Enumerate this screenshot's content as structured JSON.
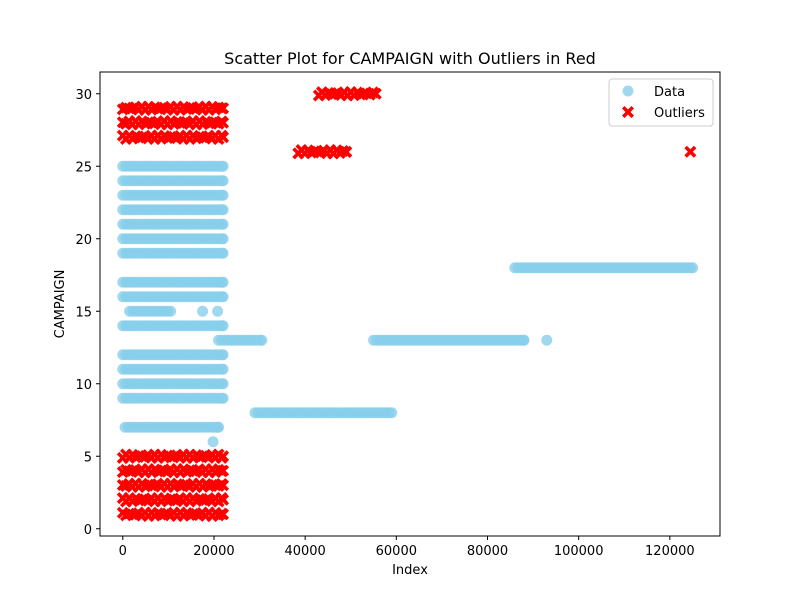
{
  "chart_data": {
    "type": "scatter",
    "title": "Scatter Plot for CAMPAIGN with Outliers in Red",
    "xlabel": "Index",
    "ylabel": "CAMPAIGN",
    "xlim": [
      -5000,
      131000
    ],
    "ylim": [
      -0.5,
      31.5
    ],
    "xticks": [
      0,
      20000,
      40000,
      60000,
      80000,
      100000,
      120000
    ],
    "yticks": [
      0,
      5,
      10,
      15,
      20,
      25,
      30
    ],
    "grid": false,
    "legend": {
      "placement": "top-right",
      "entries": [
        "Data",
        "Outliers"
      ]
    },
    "colors": {
      "data": "#87ceeb",
      "outliers": "#ff0000",
      "axes": "#000000"
    },
    "series": [
      {
        "name": "Data",
        "marker": "circle",
        "color": "#87ceeb",
        "segments": [
          {
            "y": 25,
            "x_from": 0,
            "x_to": 22000
          },
          {
            "y": 24,
            "x_from": 0,
            "x_to": 22000
          },
          {
            "y": 23,
            "x_from": 0,
            "x_to": 22000
          },
          {
            "y": 22,
            "x_from": 0,
            "x_to": 22000
          },
          {
            "y": 21,
            "x_from": 0,
            "x_to": 22000
          },
          {
            "y": 20,
            "x_from": 0,
            "x_to": 22000
          },
          {
            "y": 19,
            "x_from": 0,
            "x_to": 22000
          },
          {
            "y": 17,
            "x_from": 0,
            "x_to": 22000
          },
          {
            "y": 16,
            "x_from": 0,
            "x_to": 22000
          },
          {
            "y": 15,
            "x_from": 1500,
            "x_to": 10500
          },
          {
            "y": 14,
            "x_from": 0,
            "x_to": 22000
          },
          {
            "y": 13,
            "x_from": 21000,
            "x_to": 30500
          },
          {
            "y": 13,
            "x_from": 55000,
            "x_to": 88000
          },
          {
            "y": 12,
            "x_from": 0,
            "x_to": 22000
          },
          {
            "y": 11,
            "x_from": 0,
            "x_to": 22000
          },
          {
            "y": 10,
            "x_from": 0,
            "x_to": 22000
          },
          {
            "y": 9,
            "x_from": 0,
            "x_to": 22000
          },
          {
            "y": 8,
            "x_from": 29000,
            "x_to": 59000
          },
          {
            "y": 7,
            "x_from": 500,
            "x_to": 21000
          },
          {
            "y": 18,
            "x_from": 86000,
            "x_to": 125000
          }
        ],
        "points": [
          {
            "x": 17500,
            "y": 15
          },
          {
            "x": 20800,
            "y": 15
          },
          {
            "x": 19800,
            "y": 6
          },
          {
            "x": 93000,
            "y": 13
          }
        ]
      },
      {
        "name": "Outliers",
        "marker": "X",
        "color": "#ff0000",
        "segments": [
          {
            "y": 29,
            "x_from": 0,
            "x_to": 22000
          },
          {
            "y": 28,
            "x_from": 0,
            "x_to": 22000
          },
          {
            "y": 27,
            "x_from": 0,
            "x_to": 22000
          },
          {
            "y": 30,
            "x_from": 43000,
            "x_to": 55500
          },
          {
            "y": 26,
            "x_from": 38500,
            "x_to": 49000
          },
          {
            "y": 5,
            "x_from": 0,
            "x_to": 22000
          },
          {
            "y": 4,
            "x_from": 0,
            "x_to": 22000
          },
          {
            "y": 3,
            "x_from": 0,
            "x_to": 22000
          },
          {
            "y": 2,
            "x_from": 0,
            "x_to": 22000
          },
          {
            "y": 1,
            "x_from": 0,
            "x_to": 22000
          }
        ],
        "points": [
          {
            "x": 124500,
            "y": 26
          }
        ]
      }
    ]
  }
}
